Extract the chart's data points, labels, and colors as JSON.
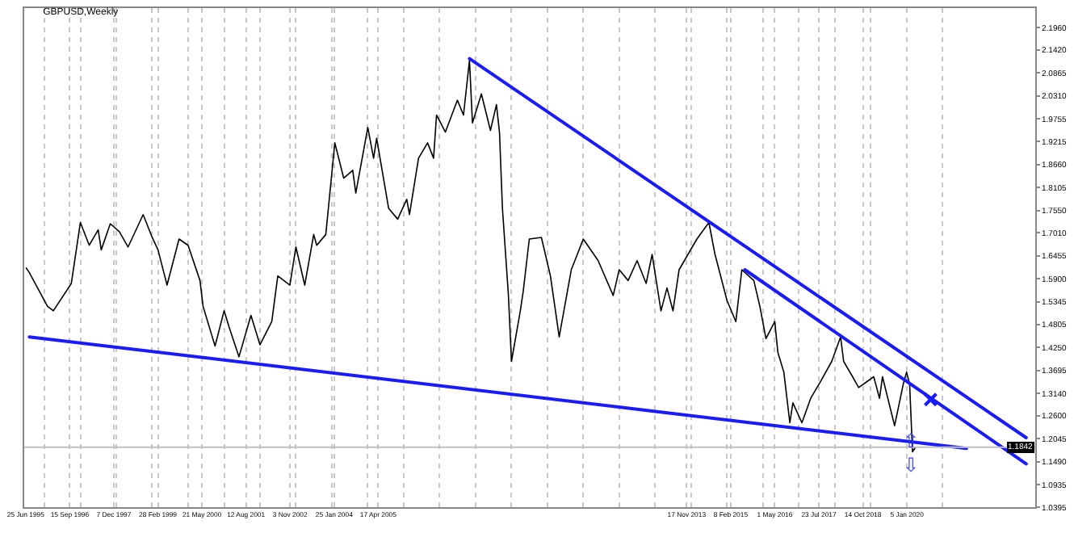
{
  "chart_data": {
    "type": "line",
    "title": "GBPUSD,Weekly",
    "xlim": [
      "1995-06-10",
      "2023-08-01"
    ],
    "ylim": [
      1.0395,
      2.243
    ],
    "yticks": [
      {
        "value": 2.196,
        "label": "2.1960"
      },
      {
        "value": 2.142,
        "label": "2.1420"
      },
      {
        "value": 2.0865,
        "label": "2.0865"
      },
      {
        "value": 2.031,
        "label": "2.0310"
      },
      {
        "value": 1.9755,
        "label": "1.9755"
      },
      {
        "value": 1.9215,
        "label": "1.9215"
      },
      {
        "value": 1.866,
        "label": "1.8660"
      },
      {
        "value": 1.8105,
        "label": "1.8105"
      },
      {
        "value": 1.755,
        "label": "1.7550"
      },
      {
        "value": 1.701,
        "label": "1.7010"
      },
      {
        "value": 1.6455,
        "label": "1.6455"
      },
      {
        "value": 1.59,
        "label": "1.5900"
      },
      {
        "value": 1.5345,
        "label": "1.5345"
      },
      {
        "value": 1.4805,
        "label": "1.4805"
      },
      {
        "value": 1.425,
        "label": "1.4250"
      },
      {
        "value": 1.3695,
        "label": "1.3695"
      },
      {
        "value": 1.314,
        "label": "1.3140"
      },
      {
        "value": 1.26,
        "label": "1.2600"
      },
      {
        "value": 1.2045,
        "label": "1.2045"
      },
      {
        "value": 1.149,
        "label": "1.1490"
      },
      {
        "value": 1.0935,
        "label": "1.0935"
      },
      {
        "value": 1.0395,
        "label": "1.0395"
      }
    ],
    "xticks": [
      {
        "value": "1995-06-25",
        "label": "25 Jun 1995"
      },
      {
        "value": "1996-09-15",
        "label": "15 Sep 1996"
      },
      {
        "value": "1997-12-07",
        "label": "7 Dec 1997"
      },
      {
        "value": "1999-02-28",
        "label": "28 Feb 1999"
      },
      {
        "value": "2000-05-21",
        "label": "21 May 2000"
      },
      {
        "value": "2001-08-12",
        "label": "12 Aug 2001"
      },
      {
        "value": "2002-11-03",
        "label": "3 Nov 2002"
      },
      {
        "value": "2004-01-25",
        "label": "25 Jan 2004"
      },
      {
        "value": "2005-04-17",
        "label": "17 Apr 2005"
      },
      {
        "value": "2013-11-17",
        "label": "17 Nov 2013"
      },
      {
        "value": "2015-02-08",
        "label": "8 Feb 2015"
      },
      {
        "value": "2016-05-01",
        "label": "1 May 2016"
      },
      {
        "value": "2017-07-23",
        "label": "23 Jul 2017"
      },
      {
        "value": "2018-10-14",
        "label": "14 Oct 2018"
      },
      {
        "value": "2020-01-05",
        "label": "5 Jan 2020"
      },
      {
        "value": "1996-01-01",
        "label": null
      },
      {
        "value": "1997-01-01",
        "label": null
      },
      {
        "value": "1998-01-01",
        "label": null
      },
      {
        "value": "1999-01-01",
        "label": null
      },
      {
        "value": "2000-01-01",
        "label": null
      },
      {
        "value": "2001-01-01",
        "label": null
      },
      {
        "value": "2002-01-01",
        "label": null
      },
      {
        "value": "2003-01-01",
        "label": null
      },
      {
        "value": "2004-01-01",
        "label": null
      },
      {
        "value": "2005-01-01",
        "label": null
      },
      {
        "value": "2006-01-01",
        "label": null
      },
      {
        "value": "2007-01-01",
        "label": null
      },
      {
        "value": "2008-01-01",
        "label": null
      },
      {
        "value": "2009-01-01",
        "label": null
      },
      {
        "value": "2010-01-01",
        "label": null
      },
      {
        "value": "2011-01-01",
        "label": null
      },
      {
        "value": "2012-01-01",
        "label": null
      },
      {
        "value": "2013-01-01",
        "label": null
      },
      {
        "value": "2014-01-01",
        "label": null
      },
      {
        "value": "2015-01-01",
        "label": null
      },
      {
        "value": "2016-01-01",
        "label": null
      },
      {
        "value": "2017-01-01",
        "label": null
      },
      {
        "value": "2018-01-01",
        "label": null
      },
      {
        "value": "2019-01-01",
        "label": null
      },
      {
        "value": "2020-01-01",
        "label": null
      },
      {
        "value": "2021-01-01",
        "label": null
      }
    ],
    "grid": "x",
    "series": [
      {
        "color": "#000000",
        "x": [
          "1995-07",
          "1995-08",
          "1996-02",
          "1996-04",
          "1996-10",
          "1997-01",
          "1997-04",
          "1997-07",
          "1997-08",
          "1997-11",
          "1998-02",
          "1998-05",
          "1998-10",
          "1999-01",
          "1999-03",
          "1999-06",
          "1999-10",
          "2000-01",
          "2000-05",
          "2000-06",
          "2000-10",
          "2001-01",
          "2001-03",
          "2001-06",
          "2001-10",
          "2002-01",
          "2002-05",
          "2002-07",
          "2002-11",
          "2003-01",
          "2003-04",
          "2003-07",
          "2003-08",
          "2003-11",
          "2004-02",
          "2004-05",
          "2004-08",
          "2004-09",
          "2005-01",
          "2005-03",
          "2005-04",
          "2005-08",
          "2005-11",
          "2006-02",
          "2006-03",
          "2006-06",
          "2006-09",
          "2006-11",
          "2006-12",
          "2007-03",
          "2007-07",
          "2007-09",
          "2007-11",
          "2007-12",
          "2008-03",
          "2008-06",
          "2008-08",
          "2008-09",
          "2008-10",
          "2008-12",
          "2009-01",
          "2009-04",
          "2009-05",
          "2009-07",
          "2009-11",
          "2010-02",
          "2010-05",
          "2010-09",
          "2011-01",
          "2011-06",
          "2011-11",
          "2012-01",
          "2012-04",
          "2012-07",
          "2012-10",
          "2012-12",
          "2013-03",
          "2013-05",
          "2013-07",
          "2013-09",
          "2014-03",
          "2014-07",
          "2014-09",
          "2015-01",
          "2015-04",
          "2015-06",
          "2015-10",
          "2015-12",
          "2016-02",
          "2016-05",
          "2016-06",
          "2016-08",
          "2016-10",
          "2016-11",
          "2017-02",
          "2017-05",
          "2017-08",
          "2017-12",
          "2018-03",
          "2018-04",
          "2018-07",
          "2018-09",
          "2019-02",
          "2019-04",
          "2019-05",
          "2019-09",
          "2019-12",
          "2020-01",
          "2020-02",
          "2020-03",
          "2020-04"
        ],
        "values": [
          1.616,
          1.605,
          1.524,
          1.513,
          1.579,
          1.726,
          1.671,
          1.708,
          1.66,
          1.723,
          1.704,
          1.667,
          1.745,
          1.69,
          1.66,
          1.575,
          1.686,
          1.671,
          1.586,
          1.524,
          1.428,
          1.513,
          1.468,
          1.402,
          1.502,
          1.431,
          1.487,
          1.597,
          1.575,
          1.667,
          1.575,
          1.697,
          1.671,
          1.697,
          1.918,
          1.833,
          1.852,
          1.797,
          1.955,
          1.881,
          1.929,
          1.76,
          1.734,
          1.782,
          1.745,
          1.881,
          1.918,
          1.881,
          1.985,
          1.944,
          2.021,
          1.985,
          2.117,
          1.966,
          2.036,
          1.948,
          2.01,
          1.944,
          1.76,
          1.55,
          1.391,
          1.513,
          1.561,
          1.686,
          1.69,
          1.597,
          1.45,
          1.612,
          1.686,
          1.634,
          1.55,
          1.612,
          1.586,
          1.634,
          1.579,
          1.649,
          1.513,
          1.568,
          1.513,
          1.612,
          1.686,
          1.726,
          1.649,
          1.538,
          1.487,
          1.612,
          1.586,
          1.524,
          1.446,
          1.487,
          1.413,
          1.365,
          1.243,
          1.291,
          1.243,
          1.302,
          1.339,
          1.391,
          1.45,
          1.391,
          1.354,
          1.328,
          1.354,
          1.302,
          1.354,
          1.236,
          1.339,
          1.365,
          1.336,
          1.173,
          1.184
        ]
      },
      {
        "type": "line",
        "color": "#1a1aff",
        "x": [
          "2007-11",
          "2023-05"
        ],
        "values": [
          2.121,
          1.207
        ]
      },
      {
        "type": "line",
        "color": "#1a1aff",
        "x": [
          "2015-07",
          "2023-05"
        ],
        "values": [
          1.612,
          1.144
        ]
      },
      {
        "type": "line",
        "color": "#1a1aff",
        "x": [
          "1995-08",
          "2021-09"
        ],
        "values": [
          1.45,
          1.181
        ]
      },
      {
        "type": "scatter",
        "marker": "cross",
        "color": "#1a1aff",
        "x": [
          "2020-09"
        ],
        "values": [
          1.299
        ]
      }
    ],
    "ref_lines": [
      {
        "axis": "y",
        "value": 1.1842,
        "label": "1.1842",
        "color": "#c0c0c0"
      }
    ],
    "annotations": [
      "⇧",
      "⇩"
    ]
  }
}
